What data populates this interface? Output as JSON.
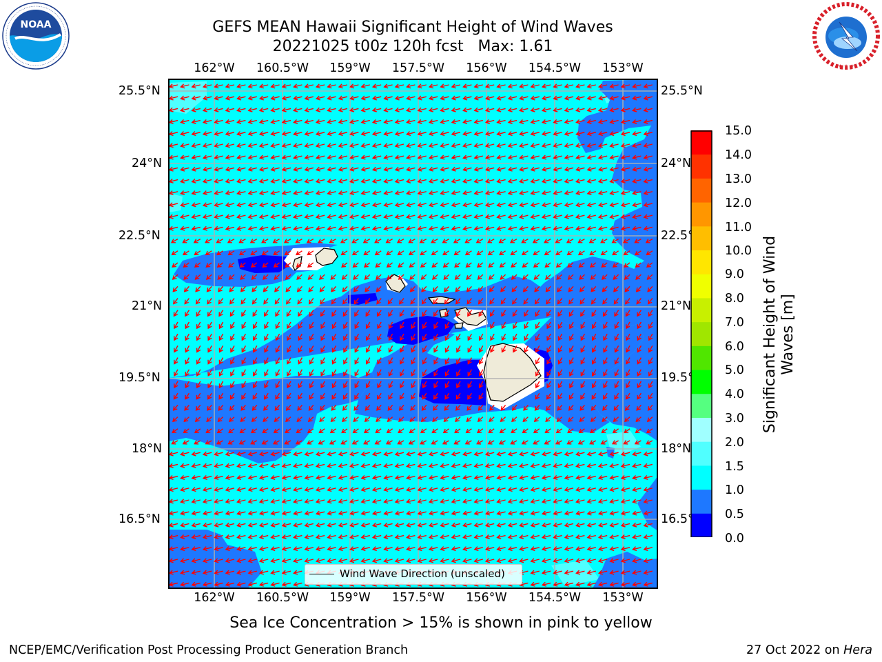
{
  "title": {
    "line1": "GEFS MEAN Hawaii Significant Height of Wind Waves",
    "line2": "20221025 t00z 120h fcst   Max: 1.61"
  },
  "logos": {
    "noaa": {
      "icon": "noaa-logo-icon",
      "text": "NOAA",
      "ring_text": "NATIONAL OCEANIC AND ATMOSPHERIC ADMINISTRATION · U.S. DEPARTMENT OF COMMERCE"
    },
    "nws": {
      "icon": "nws-logo-icon",
      "ring_text": "NATIONAL WEATHER SERVICE"
    }
  },
  "map": {
    "lon_ticks": [
      "162°W",
      "160.5°W",
      "159°W",
      "157.5°W",
      "156°W",
      "154.5°W",
      "153°W"
    ],
    "lat_ticks_left": [
      "25.5°N",
      "24°N",
      "22.5°N",
      "21°N",
      "19.5°N",
      "18°N",
      "16.5°N"
    ],
    "lat_ticks_right": [
      "25.5°N",
      "24°N",
      "22.5°N",
      "21°N",
      "19.5°N",
      "18°N",
      "16.5°N"
    ],
    "legend_label": "Wind Wave Direction (unscaled)",
    "vector_color": "#ff0000",
    "land_color": "#efebd9"
  },
  "colorbar": {
    "title_line1": "Significant Height of Wind",
    "title_line2": "Waves [m]",
    "labels": [
      "15.0",
      "14.0",
      "13.0",
      "12.0",
      "11.0",
      "10.0",
      "9.0",
      "8.0",
      "7.0",
      "6.0",
      "5.0",
      "4.0",
      "3.0",
      "2.0",
      "1.5",
      "1.0",
      "0.5",
      "0.0"
    ],
    "colors_bottom_to_top": [
      "#0000ff",
      "#1e78ff",
      "#00ffff",
      "#50ffff",
      "#a0ffff",
      "#55ff80",
      "#00ff00",
      "#50e600",
      "#a0e600",
      "#c8f000",
      "#f0ff00",
      "#ffe600",
      "#ffbe00",
      "#ff9600",
      "#ff6400",
      "#ff3200",
      "#ff0000"
    ]
  },
  "bottom_note": "Sea Ice Concentration > 15% is shown in pink to yellow",
  "footer": {
    "left": "NCEP/EMC/Verification Post Processing Product Generation Branch",
    "right_date": "27 Oct 2022 on ",
    "right_host": "Hera"
  }
}
